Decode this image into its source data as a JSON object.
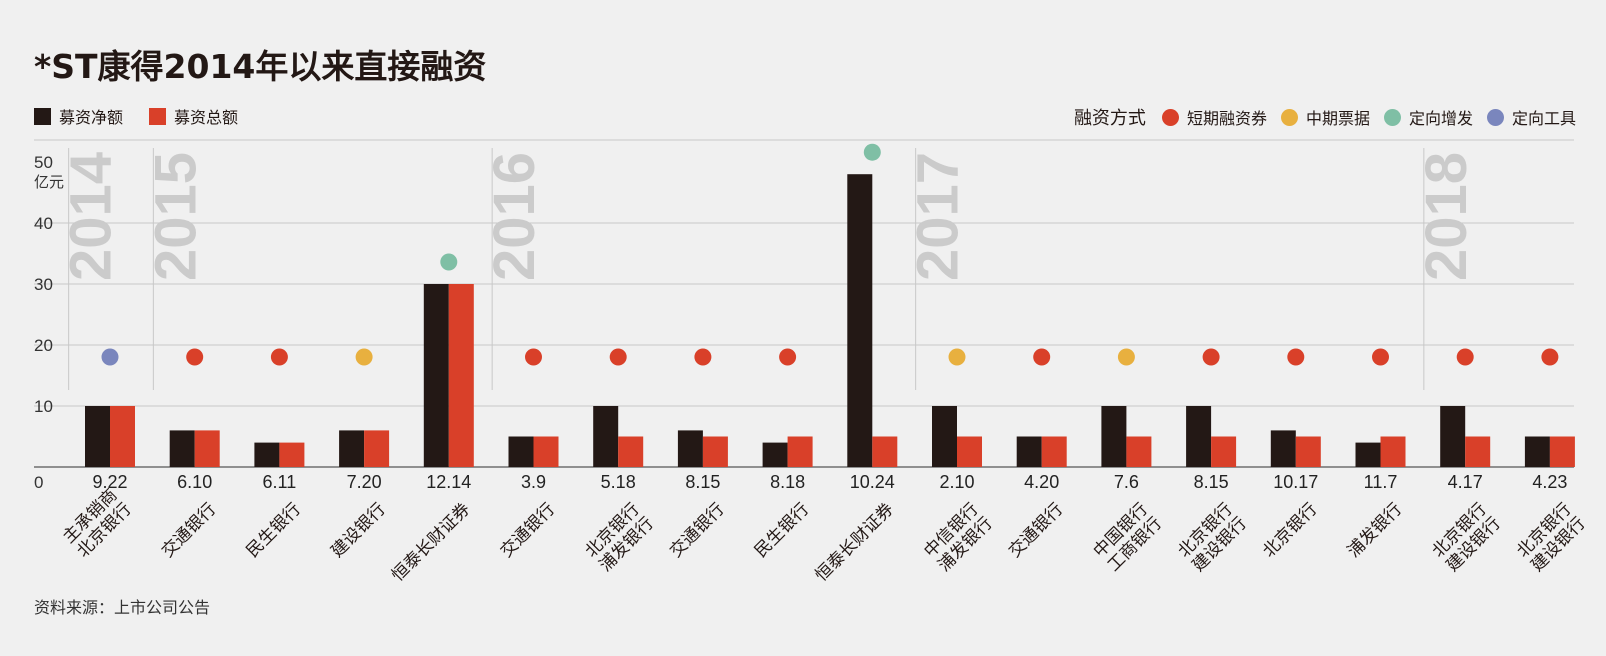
{
  "title": "*ST康得2014年以来直接融资",
  "legend": {
    "net_label": "募资净额",
    "total_label": "募资总额",
    "method_heading": "融资方式",
    "methods": [
      {
        "key": "short",
        "label": "短期融资券",
        "color": "#d94029"
      },
      {
        "key": "medium",
        "label": "中期票据",
        "color": "#e8b03f"
      },
      {
        "key": "private",
        "label": "定向增发",
        "color": "#7fbfa5"
      },
      {
        "key": "tool",
        "label": "定向工具",
        "color": "#7a86bd"
      }
    ]
  },
  "source": "资料来源：上市公司公告",
  "colors": {
    "net": "#231815",
    "total": "#d94029",
    "grid": "#c8c8c8",
    "year": "#cbcbcb"
  },
  "chart_data": {
    "type": "bar",
    "ylabel_unit": "亿元",
    "ylim": [
      0,
      50
    ],
    "yticks": [
      0,
      10,
      20,
      30,
      40,
      50
    ],
    "grid": true,
    "first_row_label": "主承销商",
    "series": [
      {
        "name": "募资净额",
        "values": [
          10,
          6,
          4,
          6,
          30,
          5,
          10,
          6,
          4,
          48,
          10,
          5,
          10,
          10,
          6,
          4,
          10,
          5
        ]
      },
      {
        "name": "募资总额",
        "values": [
          10,
          6,
          4,
          6,
          30,
          5,
          5,
          5,
          5,
          5,
          5,
          5,
          5,
          5,
          5,
          5,
          5,
          5
        ]
      }
    ],
    "categories": [
      "9.22",
      "6.10",
      "6.11",
      "7.20",
      "12.14",
      "3.9",
      "5.18",
      "8.15",
      "8.18",
      "10.24",
      "2.10",
      "4.20",
      "7.6",
      "8.15",
      "10.17",
      "11.7",
      "4.17",
      "4.23"
    ],
    "methods": [
      "tool",
      "short",
      "short",
      "medium",
      "private",
      "short",
      "short",
      "short",
      "short",
      "private",
      "medium",
      "short",
      "medium",
      "short",
      "short",
      "short",
      "short",
      "short"
    ],
    "banks": [
      [
        "北京银行"
      ],
      [
        "交通银行"
      ],
      [
        "民生银行"
      ],
      [
        "建设银行"
      ],
      [
        "恒泰长财证券"
      ],
      [
        "交通银行"
      ],
      [
        "北京银行",
        "浦发银行"
      ],
      [
        "交通银行"
      ],
      [
        "民生银行"
      ],
      [
        "恒泰长财证券"
      ],
      [
        "中信银行",
        "浦发银行"
      ],
      [
        "交通银行"
      ],
      [
        "中国银行",
        "工商银行"
      ],
      [
        "北京银行",
        "建设银行"
      ],
      [
        "北京银行"
      ],
      [
        "浦发银行"
      ],
      [
        "北京银行",
        "建设银行"
      ],
      [
        "北京银行",
        "建设银行"
      ]
    ],
    "years": [
      {
        "label": "2014",
        "start": 0
      },
      {
        "label": "2015",
        "start": 1
      },
      {
        "label": "2016",
        "start": 5
      },
      {
        "label": "2017",
        "start": 10
      },
      {
        "label": "2018",
        "start": 16
      }
    ]
  }
}
